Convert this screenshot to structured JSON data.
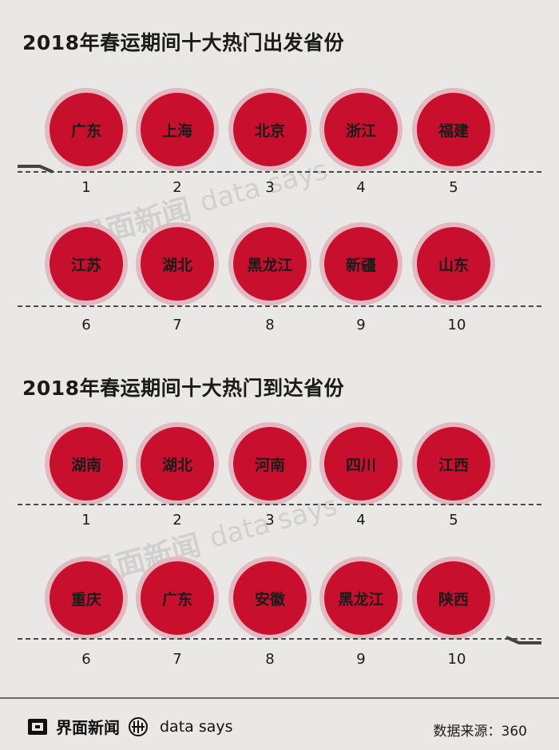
{
  "sections": [
    {
      "title": "2018年春运期间十大热门出发省份",
      "provinces": [
        "广东",
        "上海",
        "北京",
        "浙江",
        "福建",
        "江苏",
        "湖北",
        "黑龙江",
        "新疆",
        "山东"
      ],
      "ranks": [
        "1",
        "2",
        "3",
        "4",
        "5",
        "6",
        "7",
        "8",
        "9",
        "10"
      ]
    },
    {
      "title": "2018年春运期间十大热门到达省份",
      "provinces": [
        "湖南",
        "湖北",
        "河南",
        "四川",
        "江西",
        "重庆",
        "广东",
        "安徽",
        "黑龙江",
        "陕西"
      ],
      "ranks": [
        "1",
        "2",
        "3",
        "4",
        "5",
        "6",
        "7",
        "8",
        "9",
        "10"
      ]
    }
  ],
  "watermark": {
    "brand": "界面新闻",
    "tagline": "data says"
  },
  "footer": {
    "brand": "界面新闻",
    "tagline": "data says",
    "source": "数据来源：360"
  },
  "colors": {
    "circle": "#c8102e",
    "ring": "#e4b8c0",
    "background": "#e9e8e6"
  },
  "icons": [
    "jiemian-logo-icon",
    "data-says-logo-icon",
    "flow-arrow-icon"
  ]
}
